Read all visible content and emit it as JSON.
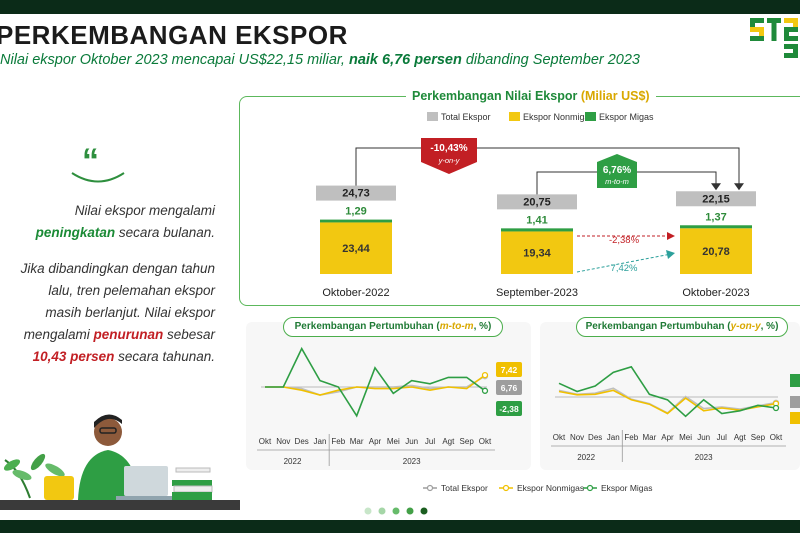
{
  "header": {
    "title": "PERKEMBANGAN EKSPOR",
    "subtitle_pre": "Nilai ekspor Oktober 2023 mencapai US$22,15 miliar, ",
    "subtitle_bold": "naik 6,76 persen",
    "subtitle_post": " dibanding September 2023",
    "logo_text": "ST2023"
  },
  "narrative": {
    "quote_glyph": "“",
    "p1_a": "Nilai ekspor mengalami",
    "p1_b": "peningkatan",
    "p1_c": " secara bulanan.",
    "p2_l1": "Jika dibandingkan dengan tahun",
    "p2_l2": "lalu, tren pelemahan ekspor",
    "p2_l3": "masih berlanjut. Nilai ekspor",
    "p2_l4_a": "mengalami ",
    "p2_l4_b": "penurunan",
    "p2_l4_c": " sebesar",
    "p2_l5_a": "10,43 persen",
    "p2_l5_b": " secara tahunan."
  },
  "colors": {
    "total": "#bfbfbf",
    "nonmigas": "#f2c811",
    "migas": "#2e9e44",
    "dark_green": "#0b2b18",
    "red": "#c21f24",
    "accent_green": "#1f8a3a"
  },
  "chart_data": [
    {
      "type": "bar",
      "title_pre": "Perkembangan Nilai Ekspor ",
      "title_unit": "(Miliar US$)",
      "legend": [
        "Total Ekspor",
        "Ekspor Nonmigas",
        "Ekspor Migas"
      ],
      "categories": [
        "Oktober-2022",
        "September-2023",
        "Oktober-2023"
      ],
      "series": [
        {
          "name": "Ekspor Nonmigas",
          "values": [
            23.44,
            19.34,
            20.78
          ],
          "labels": [
            "23,44",
            "19,34",
            "20,78"
          ]
        },
        {
          "name": "Ekspor Migas",
          "values": [
            1.29,
            1.41,
            1.37
          ],
          "labels": [
            "1,29",
            "1,41",
            "1,37"
          ]
        },
        {
          "name": "Total Ekspor",
          "values": [
            24.73,
            20.75,
            22.15
          ],
          "labels": [
            "24,73",
            "20,75",
            "22,15"
          ]
        }
      ],
      "annotations": {
        "yoy_value": "-10,43%",
        "yoy_label": "y-on-y",
        "mtm_value": "6,76%",
        "mtm_label": "m-to-m",
        "nonmigas_growth": "7,42%",
        "migas_growth": "-2,38%"
      }
    },
    {
      "type": "line",
      "title_pre": "Perkembangan Pertumbuhan ",
      "title_mode": "m-to-m",
      "title_post": ", %)",
      "x": [
        "Okt",
        "Nov",
        "Des",
        "Jan",
        "Feb",
        "Mar",
        "Apr",
        "Mei",
        "Jun",
        "Jul",
        "Agt",
        "Sep",
        "Okt"
      ],
      "years": [
        "2022",
        "2023"
      ],
      "series": [
        {
          "name": "Total Ekspor",
          "values": [
            0,
            0,
            -1,
            -5,
            -3,
            0,
            0,
            0,
            1,
            -1,
            0,
            0,
            6.76
          ]
        },
        {
          "name": "Ekspor Nonmigas",
          "values": [
            0,
            0,
            -2,
            -5,
            -2,
            0,
            -1,
            -1,
            0,
            -2,
            0,
            -1,
            7.42
          ]
        },
        {
          "name": "Ekspor Migas",
          "values": [
            0,
            0,
            24,
            4,
            0,
            -18,
            12,
            -4,
            4,
            2,
            6,
            6,
            -2.38
          ]
        }
      ],
      "end_labels": [
        "7,42",
        "6,76",
        "-2,38"
      ]
    },
    {
      "type": "line",
      "title_pre": "Perkembangan Pertumbuhan ",
      "title_mode": "y-on-y",
      "title_post": ", %)",
      "x": [
        "Okt",
        "Nov",
        "Des",
        "Jan",
        "Feb",
        "Mar",
        "Apr",
        "Mei",
        "Jun",
        "Jul",
        "Agt",
        "Sep",
        "Okt"
      ],
      "years": [
        "2022",
        "2023"
      ],
      "series": [
        {
          "name": "Total Ekspor",
          "values": [
            12,
            5,
            7,
            16,
            -4,
            -12,
            -29,
            1,
            -21,
            -18,
            -22,
            -16,
            -10.43
          ]
        },
        {
          "name": "Ekspor Nonmigas",
          "values": [
            10,
            4,
            5,
            12,
            -5,
            -13,
            -30,
            -2,
            -25,
            -20,
            -24,
            -18,
            -12
          ]
        },
        {
          "name": "Ekspor Migas",
          "values": [
            25,
            10,
            20,
            45,
            55,
            5,
            -5,
            -35,
            -5,
            -30,
            -25,
            -15,
            -20
          ]
        }
      ]
    }
  ],
  "bottom_legend": [
    "Total Ekspor",
    "Ekspor Nonmigas",
    "Ekspor Migas"
  ]
}
